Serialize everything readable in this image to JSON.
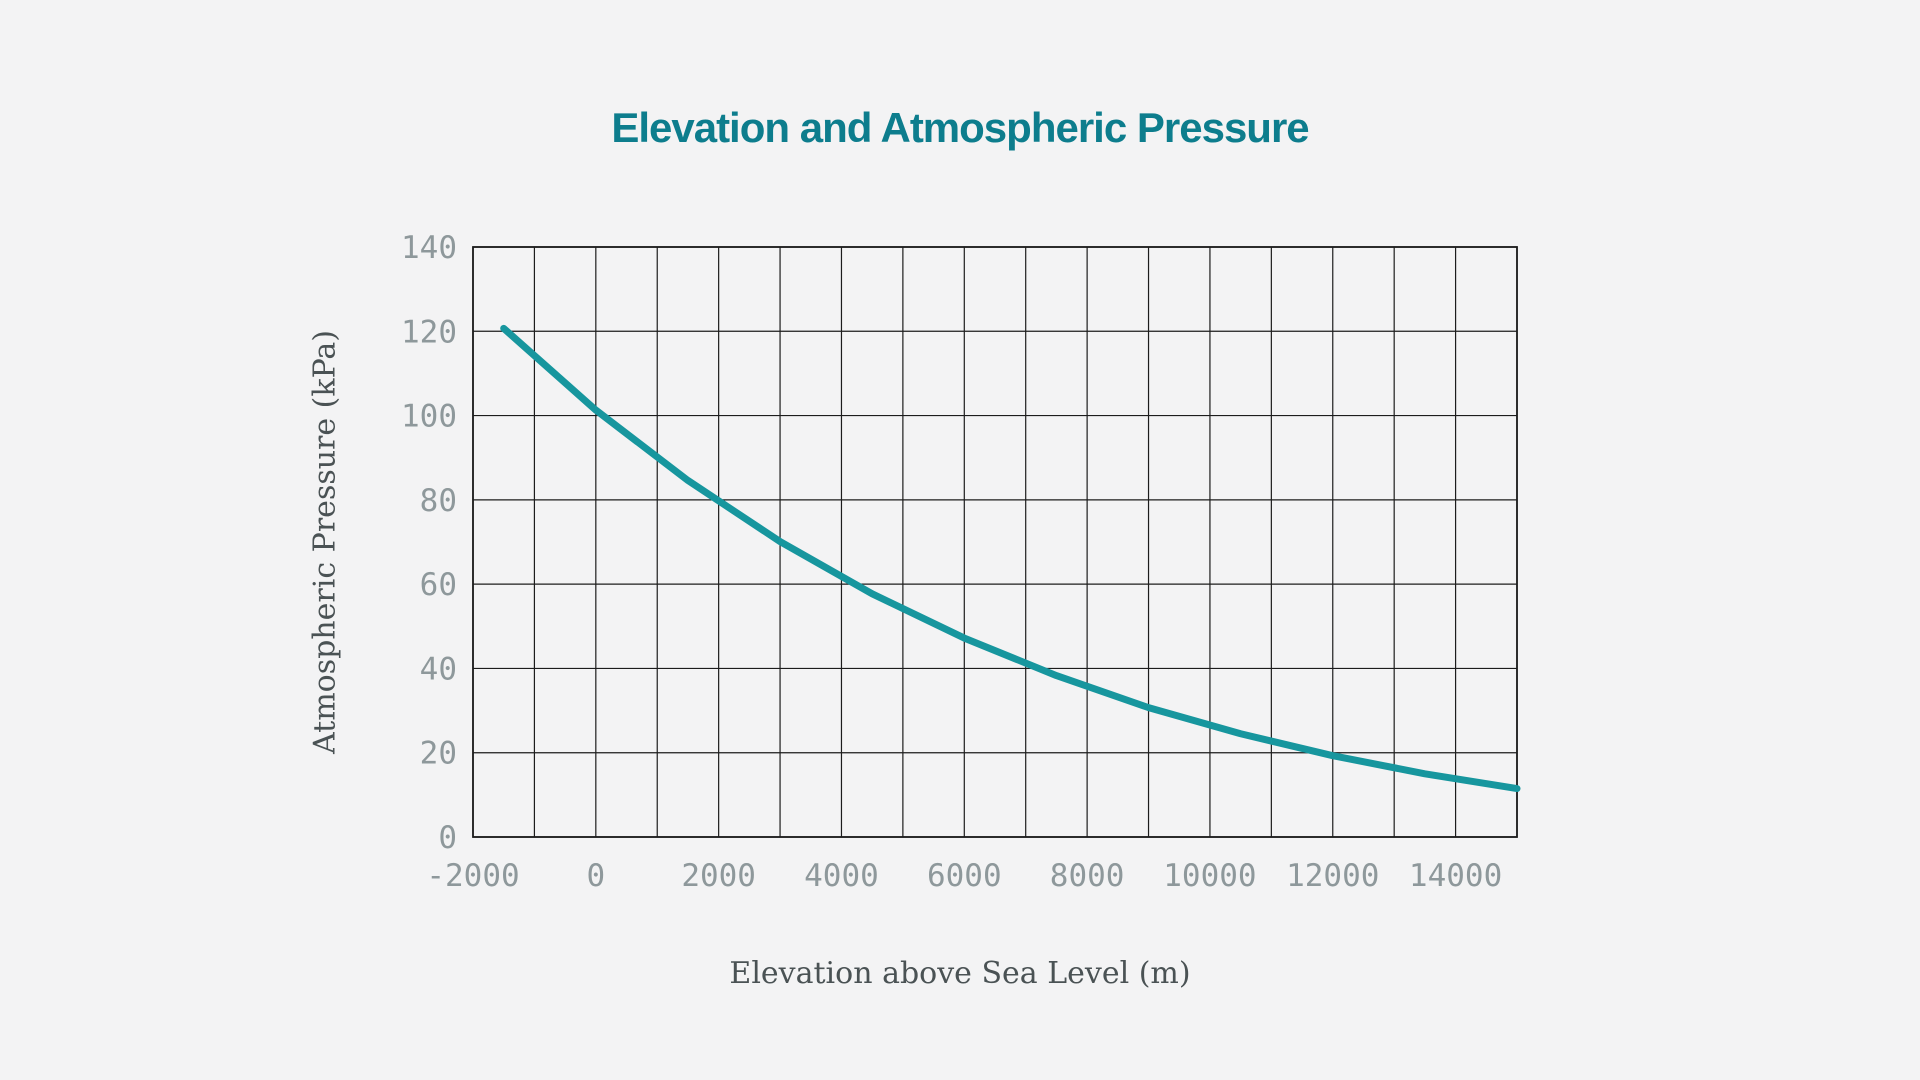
{
  "page": {
    "background_color": "#f3f3f4"
  },
  "chart_data": {
    "type": "line",
    "title": "Elevation and Atmospheric Pressure",
    "xlabel": "Elevation above Sea Level (m)",
    "ylabel": "Atmospheric Pressure (kPa)",
    "x": [
      -1500,
      0,
      1500,
      3000,
      4500,
      6000,
      7500,
      9000,
      10500,
      12000,
      13500,
      15000
    ],
    "y": [
      120.7,
      101.3,
      84.6,
      70.1,
      57.7,
      47.2,
      38.3,
      30.7,
      24.5,
      19.3,
      15.0,
      11.5
    ],
    "xlim": [
      -2000,
      15000
    ],
    "ylim": [
      0,
      140
    ],
    "x_grid_step": 1000,
    "y_grid_step": 20,
    "x_tick_values": [
      -2000,
      0,
      2000,
      4000,
      6000,
      8000,
      10000,
      12000,
      14000
    ],
    "x_tick_labels": [
      "-2000",
      "0",
      "2000",
      "4000",
      "6000",
      "8000",
      "10000",
      "12000",
      "14000"
    ],
    "y_tick_values": [
      0,
      20,
      40,
      60,
      80,
      100,
      120,
      140
    ],
    "y_tick_labels": [
      "0",
      "20",
      "40",
      "60",
      "80",
      "100",
      "120",
      "140"
    ],
    "grid": true,
    "legend": false,
    "line_color": "#17969e",
    "line_width": 7,
    "title_color": "#0d7d8d",
    "tick_color": "#8e989b",
    "axis_label_color": "#4a5254",
    "grid_color": "#1c1c1c"
  }
}
